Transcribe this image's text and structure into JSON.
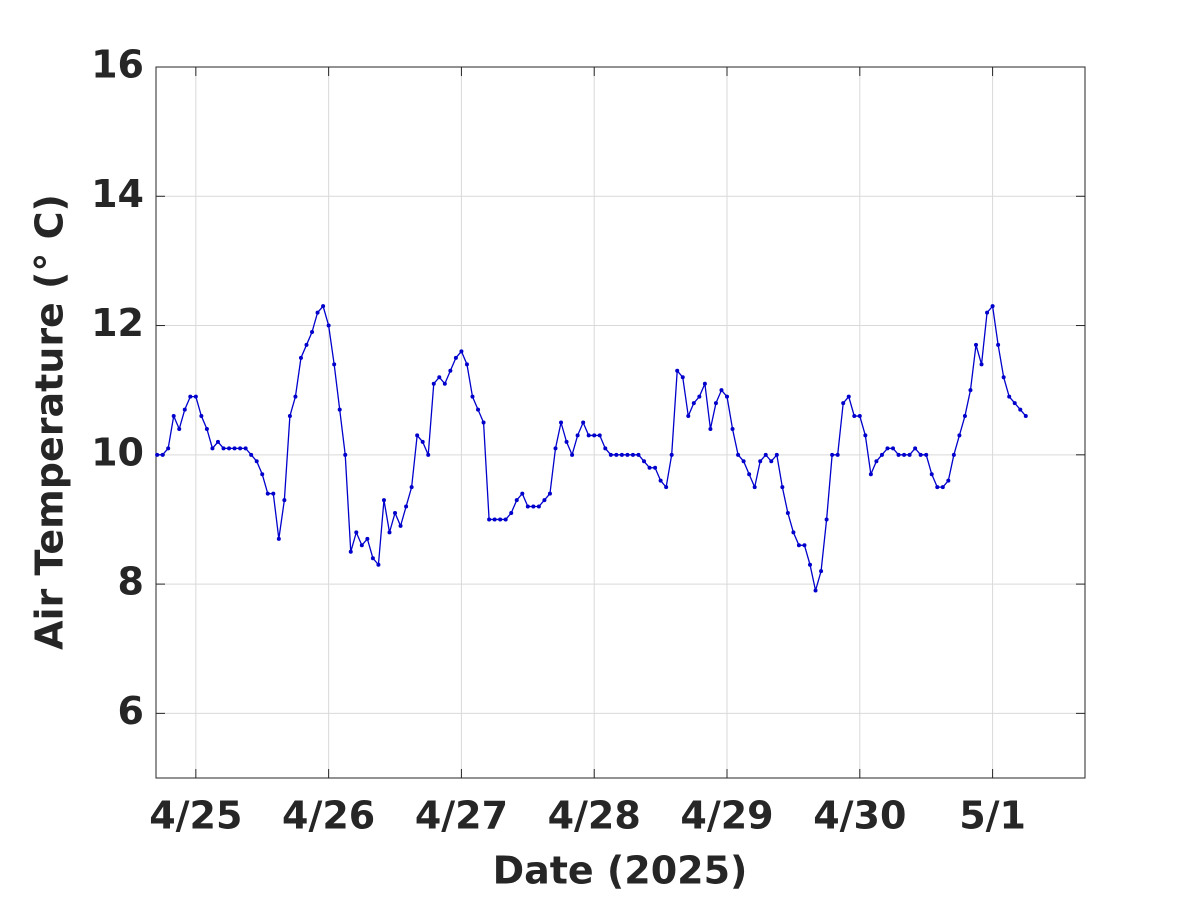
{
  "chart_data": {
    "type": "line",
    "xlabel": "Date (2025)",
    "ylabel": "Air Temperature (° C)",
    "color": "#0000cc",
    "grid": true,
    "xlim": [
      -7.2,
      160.7
    ],
    "xticks": [
      {
        "value": 0,
        "label": "4/25"
      },
      {
        "value": 24,
        "label": "4/26"
      },
      {
        "value": 48,
        "label": "4/27"
      },
      {
        "value": 72,
        "label": "4/28"
      },
      {
        "value": 96,
        "label": "4/29"
      },
      {
        "value": 120,
        "label": "4/30"
      },
      {
        "value": 144,
        "label": "5/1"
      }
    ],
    "ylim": [
      5,
      16
    ],
    "yticks": [
      6,
      8,
      10,
      12,
      14,
      16
    ],
    "x": [
      -7,
      -6,
      -5,
      -4,
      -3,
      -2,
      -1,
      0,
      1,
      2,
      3,
      4,
      5,
      6,
      7,
      8,
      9,
      10,
      11,
      12,
      13,
      14,
      15,
      16,
      17,
      18,
      19,
      20,
      21,
      22,
      23,
      24,
      25,
      26,
      27,
      28,
      29,
      30,
      31,
      32,
      33,
      34,
      35,
      36,
      37,
      38,
      39,
      40,
      41,
      42,
      43,
      44,
      45,
      46,
      47,
      48,
      49,
      50,
      51,
      52,
      53,
      54,
      55,
      56,
      57,
      58,
      59,
      60,
      61,
      62,
      63,
      64,
      65,
      66,
      67,
      68,
      69,
      70,
      71,
      72,
      73,
      74,
      75,
      76,
      77,
      78,
      79,
      80,
      81,
      82,
      83,
      84,
      85,
      86,
      87,
      88,
      89,
      90,
      91,
      92,
      93,
      94,
      95,
      96,
      97,
      98,
      99,
      100,
      101,
      102,
      103,
      104,
      105,
      106,
      107,
      108,
      109,
      110,
      111,
      112,
      113,
      114,
      115,
      116,
      117,
      118,
      119,
      120,
      121,
      122,
      123,
      124,
      125,
      126,
      127,
      128,
      129,
      130,
      131,
      132,
      133,
      134,
      135,
      136,
      137,
      138,
      139,
      140,
      141,
      142,
      143,
      144,
      145,
      146,
      147,
      148,
      149,
      150
    ],
    "values": [
      10.0,
      10.0,
      10.1,
      10.6,
      10.4,
      10.7,
      10.9,
      10.9,
      10.6,
      10.4,
      10.1,
      10.2,
      10.1,
      10.1,
      10.1,
      10.1,
      10.1,
      10.0,
      9.9,
      9.7,
      9.4,
      9.4,
      8.7,
      9.3,
      10.6,
      10.9,
      11.5,
      11.7,
      11.9,
      12.2,
      12.3,
      12.0,
      11.4,
      10.7,
      10.0,
      8.5,
      8.8,
      8.6,
      8.7,
      8.4,
      8.3,
      9.3,
      8.8,
      9.1,
      8.9,
      9.2,
      9.5,
      10.3,
      10.2,
      10.0,
      11.1,
      11.2,
      11.1,
      11.3,
      11.5,
      11.6,
      11.4,
      10.9,
      10.7,
      10.5,
      9.0,
      9.0,
      9.0,
      9.0,
      9.1,
      9.3,
      9.4,
      9.2,
      9.2,
      9.2,
      9.3,
      9.4,
      10.1,
      10.5,
      10.2,
      10.0,
      10.3,
      10.5,
      10.3,
      10.3,
      10.3,
      10.1,
      10.0,
      10.0,
      10.0,
      10.0,
      10.0,
      10.0,
      9.9,
      9.8,
      9.8,
      9.6,
      9.5,
      10.0,
      11.3,
      11.2,
      10.6,
      10.8,
      10.9,
      11.1,
      10.4,
      10.8,
      11.0,
      10.9,
      10.4,
      10.0,
      9.9,
      9.7,
      9.5,
      9.9,
      10.0,
      9.9,
      10.0,
      9.5,
      9.1,
      8.8,
      8.6,
      8.6,
      8.3,
      7.9,
      8.2,
      9.0,
      10.0,
      10.0,
      10.8,
      10.9,
      10.6,
      10.6,
      10.3,
      9.7,
      9.9,
      10.0,
      10.1,
      10.1,
      10.0,
      10.0,
      10.0,
      10.1,
      10.0,
      10.0,
      9.7,
      9.5,
      9.5,
      9.6,
      10.0,
      10.3,
      10.6,
      11.0,
      11.7,
      11.4,
      12.2,
      12.3,
      11.7,
      11.2,
      10.9,
      10.8,
      10.7,
      10.6
    ]
  }
}
